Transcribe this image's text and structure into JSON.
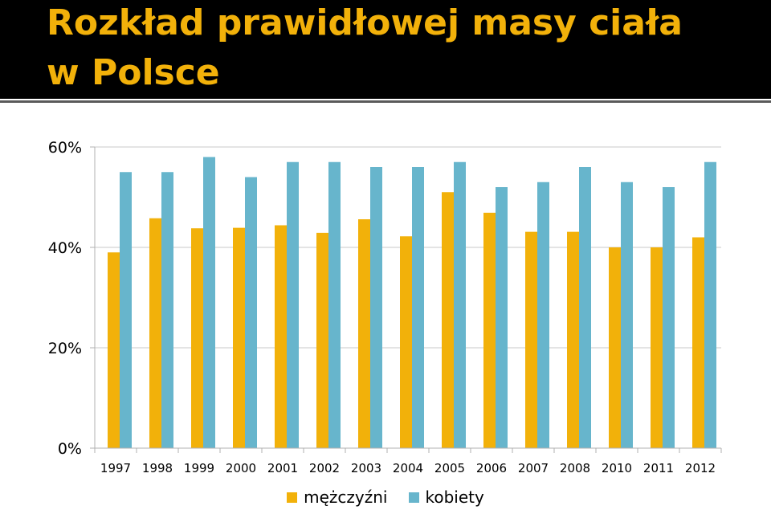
{
  "title": {
    "line1": "Rozkład prawidłowej masy ciała",
    "line2": "w Polsce",
    "color": "#f2b10a"
  },
  "chart_data": {
    "type": "bar",
    "categories": [
      "1997",
      "1998",
      "1999",
      "2000",
      "2001",
      "2002",
      "2003",
      "2004",
      "2005",
      "2006",
      "2007",
      "2008",
      "2010",
      "2011",
      "2012"
    ],
    "series": [
      {
        "name": "mężczyźni",
        "color": "#f2b10a",
        "values": [
          39,
          45.8,
          43.8,
          43.9,
          44.4,
          42.9,
          45.6,
          42.2,
          51,
          46.9,
          43.1,
          43.1,
          40,
          40,
          42
        ]
      },
      {
        "name": "kobiety",
        "color": "#67b5cc",
        "values": [
          55,
          55,
          58,
          54,
          57,
          57,
          56,
          56,
          57,
          52,
          53,
          56,
          53,
          52,
          57
        ]
      }
    ],
    "ylim": [
      0,
      60
    ],
    "yticks": [
      0,
      20,
      40,
      60
    ],
    "ytick_labels": [
      "0%",
      "20%",
      "40%",
      "60%"
    ],
    "grid": true,
    "legend_position": "bottom"
  }
}
